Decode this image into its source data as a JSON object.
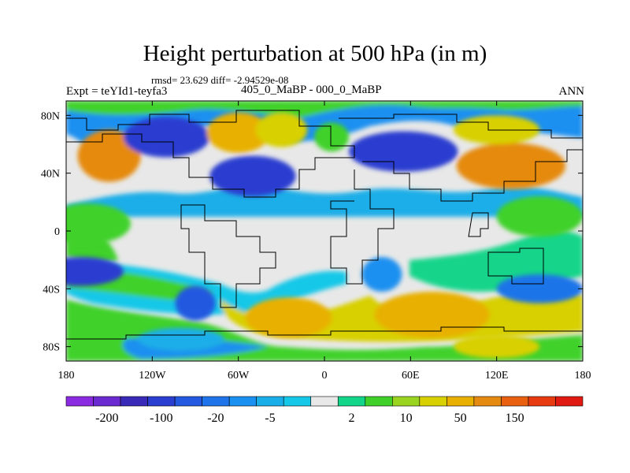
{
  "title": "Height perturbation at 500 hPa (in m)",
  "stats": "rmsd= 23.629 diff= -2.94529e-08",
  "experiment": "Expt = teYId1-teyfa3",
  "subtitle": "405_0_MaBP - 000_0_MaBP",
  "season": "ANN",
  "map": {
    "projection": "cylindrical-equidistant",
    "lon_range": [
      -180,
      180
    ],
    "lat_range": [
      -90,
      90
    ],
    "lon_tick_labels": [
      "180",
      "120W",
      "60W",
      "0",
      "60E",
      "120E",
      "180"
    ],
    "lat_tick_labels": [
      "80N",
      "40N",
      "0",
      "40S",
      "80S"
    ],
    "coastlines": "paleogeography (405 Ma), black outline",
    "background_color": "#e8e8e8"
  },
  "colorbar": {
    "colors": [
      "#8a2be2",
      "#6a2ad0",
      "#3a2ab8",
      "#2a3ed0",
      "#2358e0",
      "#1e74e8",
      "#1a90f0",
      "#1aaee8",
      "#15c8e8",
      "#e8e8e8",
      "#12d58a",
      "#3fd12a",
      "#9ad420",
      "#d8d000",
      "#e8b000",
      "#e58a10",
      "#e86010",
      "#e83a10",
      "#e01a10"
    ],
    "labels": [
      "-200",
      "-100",
      "-20",
      "-5",
      "2",
      "10",
      "50",
      "150"
    ]
  },
  "field_blobs": [
    {
      "lon": -150,
      "lat": 52,
      "rx": 22,
      "ry": 18,
      "color": "#e58a10"
    },
    {
      "lon": -110,
      "lat": 65,
      "rx": 30,
      "ry": 14,
      "color": "#2a3ed0"
    },
    {
      "lon": -60,
      "lat": 68,
      "rx": 22,
      "ry": 14,
      "color": "#e8b000"
    },
    {
      "lon": -30,
      "lat": 70,
      "rx": 18,
      "ry": 12,
      "color": "#d8d000"
    },
    {
      "lon": -50,
      "lat": 38,
      "rx": 30,
      "ry": 14,
      "color": "#2a3ed0"
    },
    {
      "lon": 5,
      "lat": 65,
      "rx": 12,
      "ry": 10,
      "color": "#3fd12a"
    },
    {
      "lon": 55,
      "lat": 55,
      "rx": 38,
      "ry": 14,
      "color": "#2a3ed0"
    },
    {
      "lon": 130,
      "lat": 45,
      "rx": 38,
      "ry": 16,
      "color": "#e58a10"
    },
    {
      "lon": 120,
      "lat": 70,
      "rx": 30,
      "ry": 10,
      "color": "#d8d000"
    },
    {
      "lon": -165,
      "lat": 5,
      "rx": 30,
      "ry": 14,
      "color": "#3fd12a"
    },
    {
      "lon": 150,
      "lat": 10,
      "rx": 30,
      "ry": 14,
      "color": "#3fd12a"
    },
    {
      "lon": 40,
      "lat": -30,
      "rx": 14,
      "ry": 12,
      "color": "#1a90f0"
    },
    {
      "lon": -170,
      "lat": -28,
      "rx": 30,
      "ry": 10,
      "color": "#2a3ed0"
    },
    {
      "lon": 150,
      "lat": -40,
      "rx": 30,
      "ry": 10,
      "color": "#1e74e8"
    },
    {
      "lon": -90,
      "lat": -50,
      "rx": 14,
      "ry": 12,
      "color": "#2358e0"
    },
    {
      "lon": 75,
      "lat": -58,
      "rx": 40,
      "ry": 16,
      "color": "#e8b000"
    },
    {
      "lon": -25,
      "lat": -60,
      "rx": 30,
      "ry": 14,
      "color": "#e8b000"
    },
    {
      "lon": -100,
      "lat": -75,
      "rx": 30,
      "ry": 8,
      "color": "#1aaee8"
    },
    {
      "lon": 120,
      "lat": -80,
      "rx": 30,
      "ry": 8,
      "color": "#d8d000"
    }
  ]
}
